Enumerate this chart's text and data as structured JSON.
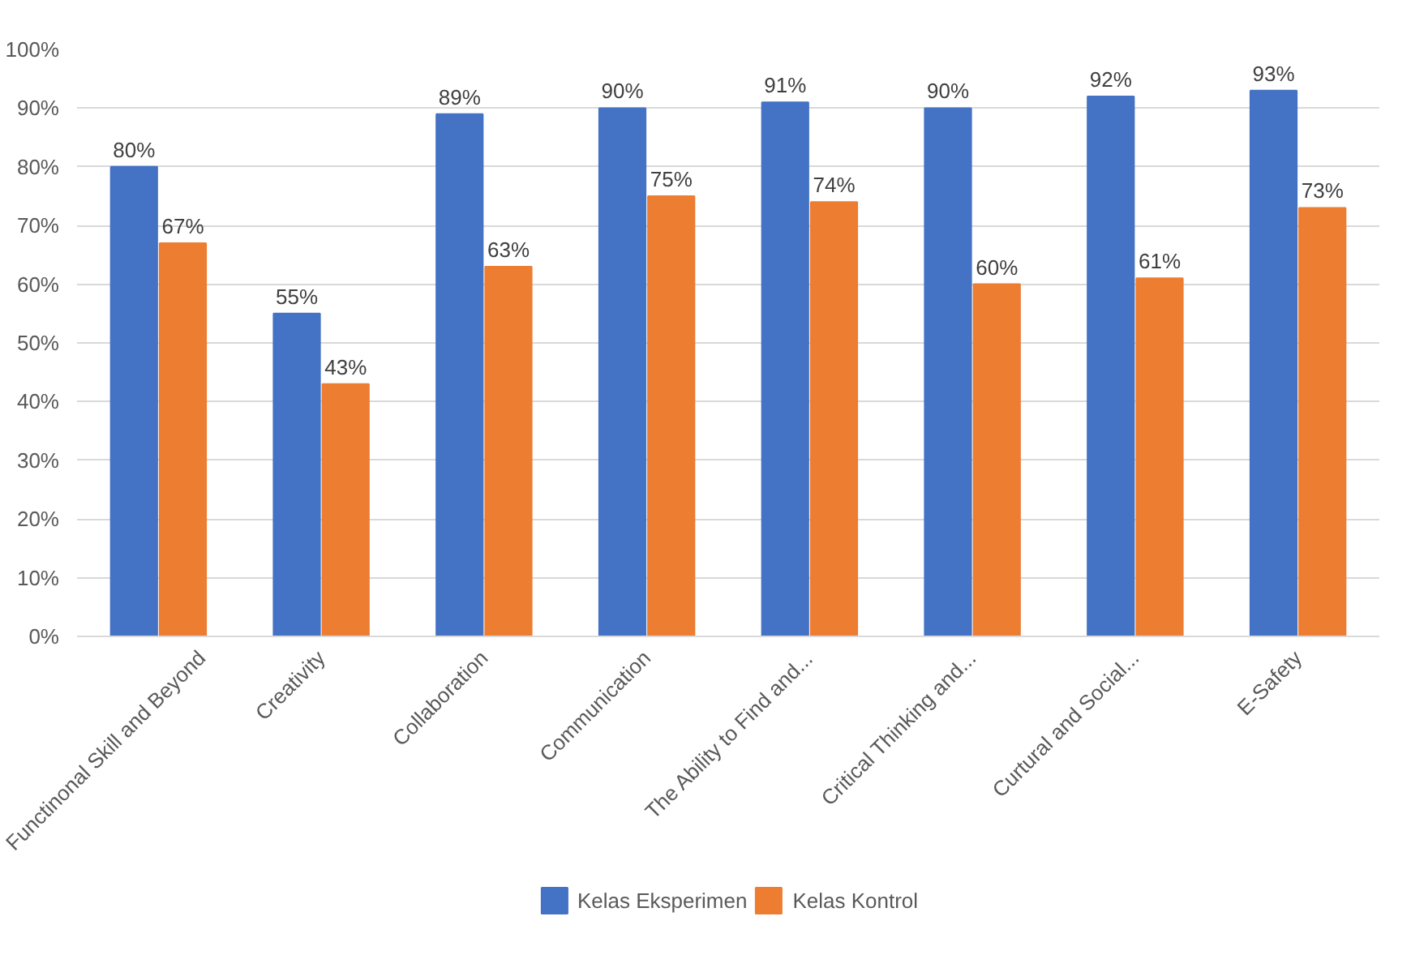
{
  "chart_data": {
    "type": "bar",
    "categories": [
      "Functinonal Skill and Beyond",
      "Creativity",
      "Collaboration",
      "Communication",
      "The Ability to Find and...",
      "Critical Thinking and...",
      "Curtural and Social...",
      "E-Safety"
    ],
    "series": [
      {
        "name": "Kelas Eksperimen",
        "color": "#4472c4",
        "values": [
          80,
          55,
          89,
          90,
          91,
          90,
          92,
          93
        ],
        "value_labels": [
          "80%",
          "55%",
          "89%",
          "90%",
          "91%",
          "90%",
          "92%",
          "93%"
        ]
      },
      {
        "name": "Kelas Kontrol",
        "color": "#ed7d31",
        "values": [
          67,
          43,
          63,
          75,
          74,
          60,
          61,
          73
        ],
        "value_labels": [
          "67%",
          "43%",
          "63%",
          "75%",
          "74%",
          "60%",
          "61%",
          "73%"
        ]
      }
    ],
    "ylim": [
      0,
      100
    ],
    "yticks": [
      {
        "value": 0,
        "label": "0%"
      },
      {
        "value": 10,
        "label": "10%"
      },
      {
        "value": 20,
        "label": "20%"
      },
      {
        "value": 30,
        "label": "30%"
      },
      {
        "value": 40,
        "label": "40%"
      },
      {
        "value": 50,
        "label": "50%"
      },
      {
        "value": 60,
        "label": "60%"
      },
      {
        "value": 70,
        "label": "70%"
      },
      {
        "value": 80,
        "label": "80%"
      },
      {
        "value": 90,
        "label": "90%"
      },
      {
        "value": 100,
        "label": "100%"
      }
    ],
    "grid": "y",
    "legend": "bottom"
  }
}
